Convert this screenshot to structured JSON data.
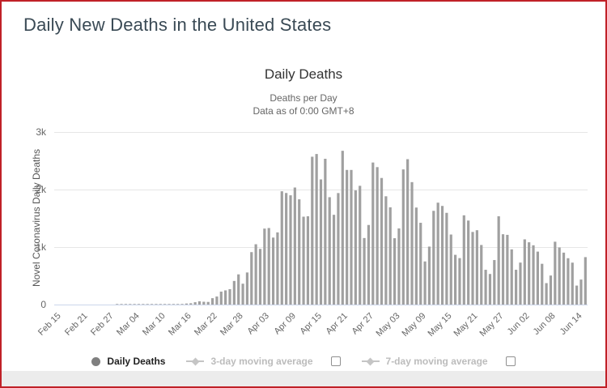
{
  "page": {
    "title": "Daily New Deaths in the United States"
  },
  "chart": {
    "title": "Daily Deaths",
    "subtitle_line1": "Deaths per Day",
    "subtitle_line2": "Data as of 0:00 GMT+8",
    "y_axis_title": "Novel Coronavirus Daily Deaths",
    "colors": {
      "bar": "#a0a0a0",
      "grid": "#e6e6e6",
      "axis_line": "#ccd6eb",
      "tick_label": "#666666",
      "frame_border": "#c02128",
      "legend_active_text": "#222222",
      "legend_disabled_text": "#bcbcbc",
      "footer_band": "#ececec"
    }
  },
  "legend": {
    "items": [
      {
        "label": "Daily Deaths",
        "marker": "circle",
        "active": true,
        "has_checkbox": false
      },
      {
        "label": "3-day moving average",
        "marker": "diamond-line",
        "active": false,
        "has_checkbox": true,
        "checkbox_checked": false
      },
      {
        "label": "7-day moving average",
        "marker": "diamond-line",
        "active": false,
        "has_checkbox": true,
        "checkbox_checked": false
      }
    ]
  },
  "chart_data": {
    "type": "bar",
    "title": "Daily Deaths",
    "xlabel": "",
    "ylabel": "Novel Coronavirus Daily Deaths",
    "ylim": [
      0,
      3000
    ],
    "yticks": [
      0,
      1000,
      2000,
      3000
    ],
    "ytick_labels": [
      "0",
      "1k",
      "2k",
      "3k"
    ],
    "grid": true,
    "legend_position": "bottom",
    "xtick_step": 6,
    "xticklabels": [
      "Feb 15",
      "Feb 21",
      "Feb 27",
      "Mar 04",
      "Mar 10",
      "Mar 16",
      "Mar 22",
      "Mar 28",
      "Apr 03",
      "Apr 09",
      "Apr 15",
      "Apr 21",
      "Apr 27",
      "May 03",
      "May 09",
      "May 15",
      "May 21",
      "May 27",
      "Jun 02",
      "Jun 08",
      "Jun 14"
    ],
    "x": [
      "Feb 15",
      "Feb 16",
      "Feb 17",
      "Feb 18",
      "Feb 19",
      "Feb 20",
      "Feb 21",
      "Feb 22",
      "Feb 23",
      "Feb 24",
      "Feb 25",
      "Feb 26",
      "Feb 27",
      "Feb 28",
      "Feb 29",
      "Mar 01",
      "Mar 02",
      "Mar 03",
      "Mar 04",
      "Mar 05",
      "Mar 06",
      "Mar 07",
      "Mar 08",
      "Mar 09",
      "Mar 10",
      "Mar 11",
      "Mar 12",
      "Mar 13",
      "Mar 14",
      "Mar 15",
      "Mar 16",
      "Mar 17",
      "Mar 18",
      "Mar 19",
      "Mar 20",
      "Mar 21",
      "Mar 22",
      "Mar 23",
      "Mar 24",
      "Mar 25",
      "Mar 26",
      "Mar 27",
      "Mar 28",
      "Mar 29",
      "Mar 30",
      "Mar 31",
      "Apr 01",
      "Apr 02",
      "Apr 03",
      "Apr 04",
      "Apr 05",
      "Apr 06",
      "Apr 07",
      "Apr 08",
      "Apr 09",
      "Apr 10",
      "Apr 11",
      "Apr 12",
      "Apr 13",
      "Apr 14",
      "Apr 15",
      "Apr 16",
      "Apr 17",
      "Apr 18",
      "Apr 19",
      "Apr 20",
      "Apr 21",
      "Apr 22",
      "Apr 23",
      "Apr 24",
      "Apr 25",
      "Apr 26",
      "Apr 27",
      "Apr 28",
      "Apr 29",
      "Apr 30",
      "May 01",
      "May 02",
      "May 03",
      "May 04",
      "May 05",
      "May 06",
      "May 07",
      "May 08",
      "May 09",
      "May 10",
      "May 11",
      "May 12",
      "May 13",
      "May 14",
      "May 15",
      "May 16",
      "May 17",
      "May 18",
      "May 19",
      "May 20",
      "May 21",
      "May 22",
      "May 23",
      "May 24",
      "May 25",
      "May 26",
      "May 27",
      "May 28",
      "May 29",
      "May 30",
      "May 31",
      "Jun 01",
      "Jun 02",
      "Jun 03",
      "Jun 04",
      "Jun 05",
      "Jun 06",
      "Jun 07",
      "Jun 08",
      "Jun 09",
      "Jun 10",
      "Jun 11",
      "Jun 12",
      "Jun 13",
      "Jun 14",
      "Jun 15",
      "Jun 16"
    ],
    "values": [
      0,
      0,
      0,
      0,
      0,
      0,
      0,
      0,
      0,
      0,
      0,
      0,
      0,
      0,
      1,
      1,
      4,
      3,
      2,
      1,
      3,
      4,
      3,
      4,
      4,
      8,
      3,
      8,
      8,
      11,
      18,
      23,
      41,
      57,
      49,
      46,
      111,
      140,
      225,
      247,
      268,
      411,
      525,
      363,
      558,
      912,
      1049,
      968,
      1321,
      1331,
      1165,
      1255,
      1970,
      1940,
      1900,
      2035,
      1830,
      1528,
      1535,
      2571,
      2618,
      2176,
      2535,
      1867,
      1561,
      1939,
      2674,
      2341,
      2341,
      1985,
      2065,
      1157,
      1384,
      2470,
      2390,
      2201,
      1883,
      1691,
      1154,
      1324,
      2350,
      2528,
      2129,
      1687,
      1422,
      750,
      1008,
      1630,
      1772,
      1715,
      1595,
      1218,
      865,
      808,
      1552,
      1461,
      1263,
      1293,
      1036,
      605,
      532,
      774,
      1535,
      1223,
      1212,
      960,
      605,
      730,
      1134,
      1083,
      1031,
      921,
      709,
      373,
      505,
      1093,
      993,
      903,
      806,
      729,
      330,
      435,
      825
    ],
    "series_name": "Daily Deaths"
  }
}
